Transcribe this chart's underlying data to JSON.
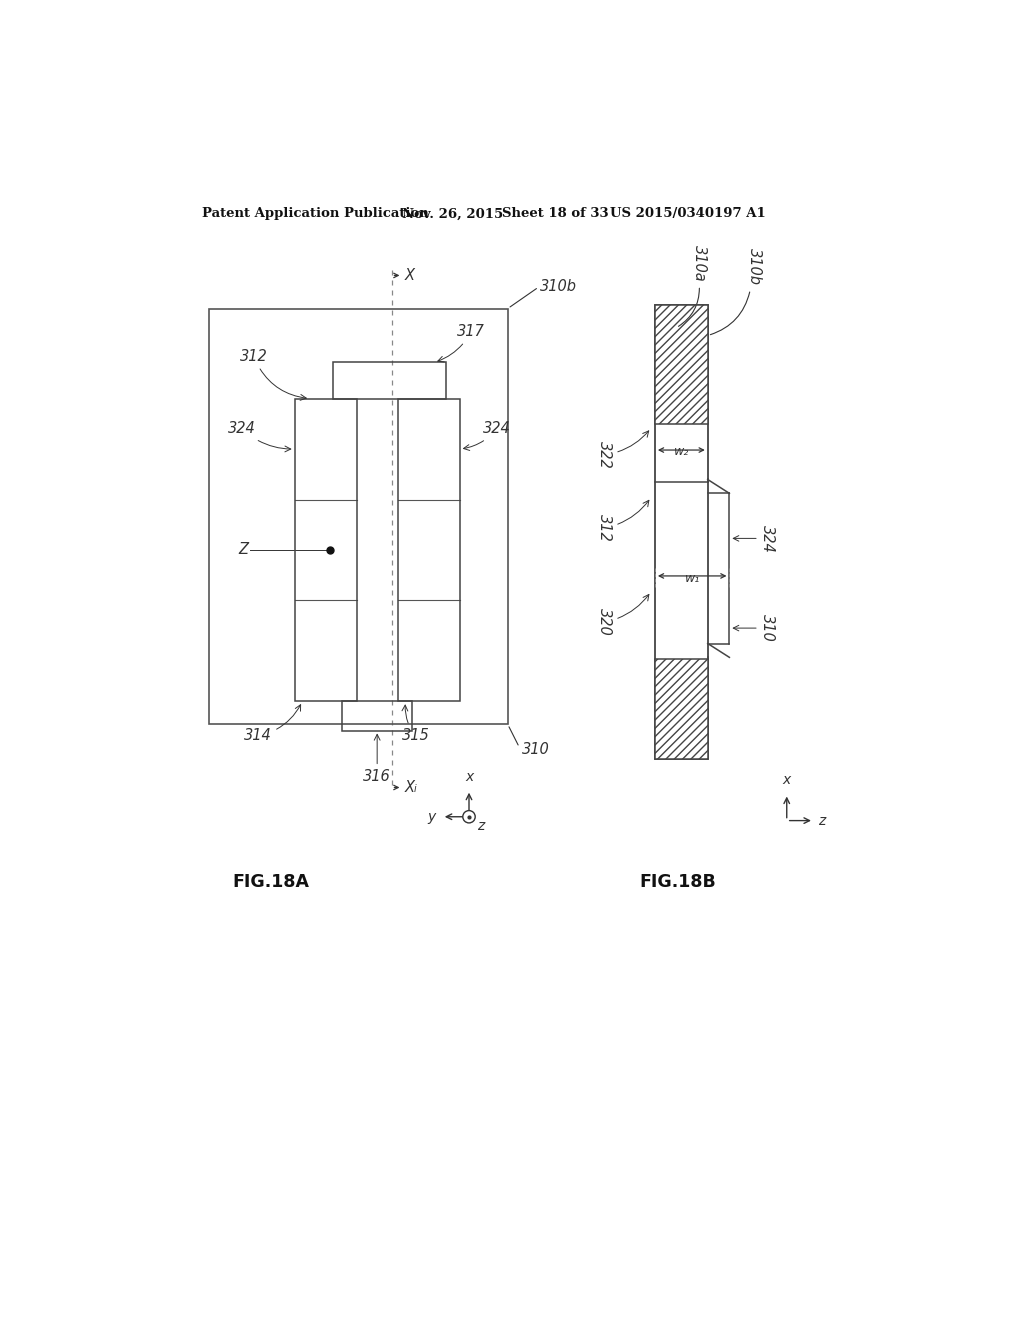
{
  "bg_color": "#ffffff",
  "header_text": "Patent Application Publication",
  "header_date": "Nov. 26, 2015",
  "header_sheet": "Sheet 18 of 33",
  "header_patent": "US 2015/0340197 A1",
  "fig18a_label": "FIG.18A",
  "fig18b_label": "FIG.18B",
  "lc": "#333333"
}
